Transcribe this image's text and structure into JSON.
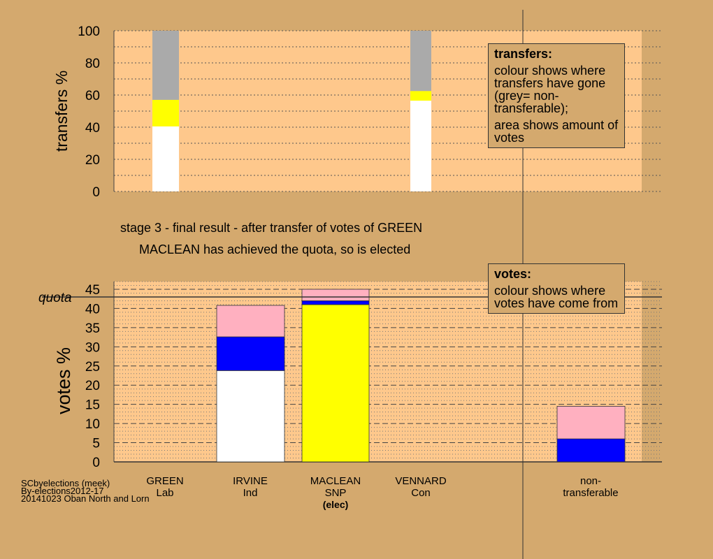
{
  "chart_data": [
    {
      "type": "bar",
      "stacked": true,
      "ylabel": "transfers %",
      "ylim": [
        0,
        100
      ],
      "yticks": [
        0,
        20,
        40,
        60,
        80,
        100
      ],
      "grid": "dotted",
      "categories": [
        "GREEN",
        "MACLEAN"
      ],
      "series": [
        {
          "color": "#ffffff",
          "values": [
            40.5,
            56.5
          ]
        },
        {
          "color": "#ffff00",
          "values": [
            16.5,
            6.0
          ]
        },
        {
          "color": "#aaaaaa",
          "values": [
            43.0,
            37.5
          ]
        }
      ]
    },
    {
      "type": "bar",
      "stacked": true,
      "ylabel": "votes %",
      "ylim": [
        0,
        47
      ],
      "yticks": [
        0,
        5,
        10,
        15,
        20,
        25,
        30,
        35,
        40,
        45
      ],
      "grid": "dashed",
      "reference_line": {
        "label": "quota",
        "value": 43.0
      },
      "categories": [
        "GREEN",
        "IRVINE",
        "MACLEAN",
        "VENNARD",
        "non-transferable"
      ],
      "series": [
        {
          "color": "#ffffff",
          "values": [
            0,
            23.8,
            0,
            0,
            0
          ]
        },
        {
          "color": "#ffff00",
          "values": [
            0,
            0,
            41.0,
            0,
            0
          ]
        },
        {
          "color": "#0000ff",
          "values": [
            0,
            8.8,
            1.0,
            0,
            6.0
          ]
        },
        {
          "color": "#ffb0c0",
          "values": [
            0,
            8.2,
            3.0,
            0,
            8.5
          ]
        }
      ]
    }
  ],
  "captions": {
    "stage": "stage 3 - final result - after transfer of votes of GREEN",
    "result": "MACLEAN has achieved the quota, so is elected"
  },
  "legends": {
    "transfers": {
      "title": "transfers:",
      "line1": "colour shows where transfers have gone (grey= non-transferable);",
      "line2": "area shows amount of votes"
    },
    "votes": {
      "title": "votes:",
      "line1": "colour shows where votes have come from"
    }
  },
  "candidates": [
    {
      "name": "GREEN",
      "party": "Lab",
      "status": ""
    },
    {
      "name": "IRVINE",
      "party": "Ind",
      "status": ""
    },
    {
      "name": "MACLEAN",
      "party": "SNP",
      "status": "(elec)"
    },
    {
      "name": "VENNARD",
      "party": "Con",
      "status": ""
    },
    {
      "name": "non-",
      "party": "transferable",
      "status": ""
    }
  ],
  "credits": {
    "line1": "SCbyelections (meek)",
    "line2": "By-elections2012-17",
    "line3": "20141023 Oban North and Lorn"
  }
}
